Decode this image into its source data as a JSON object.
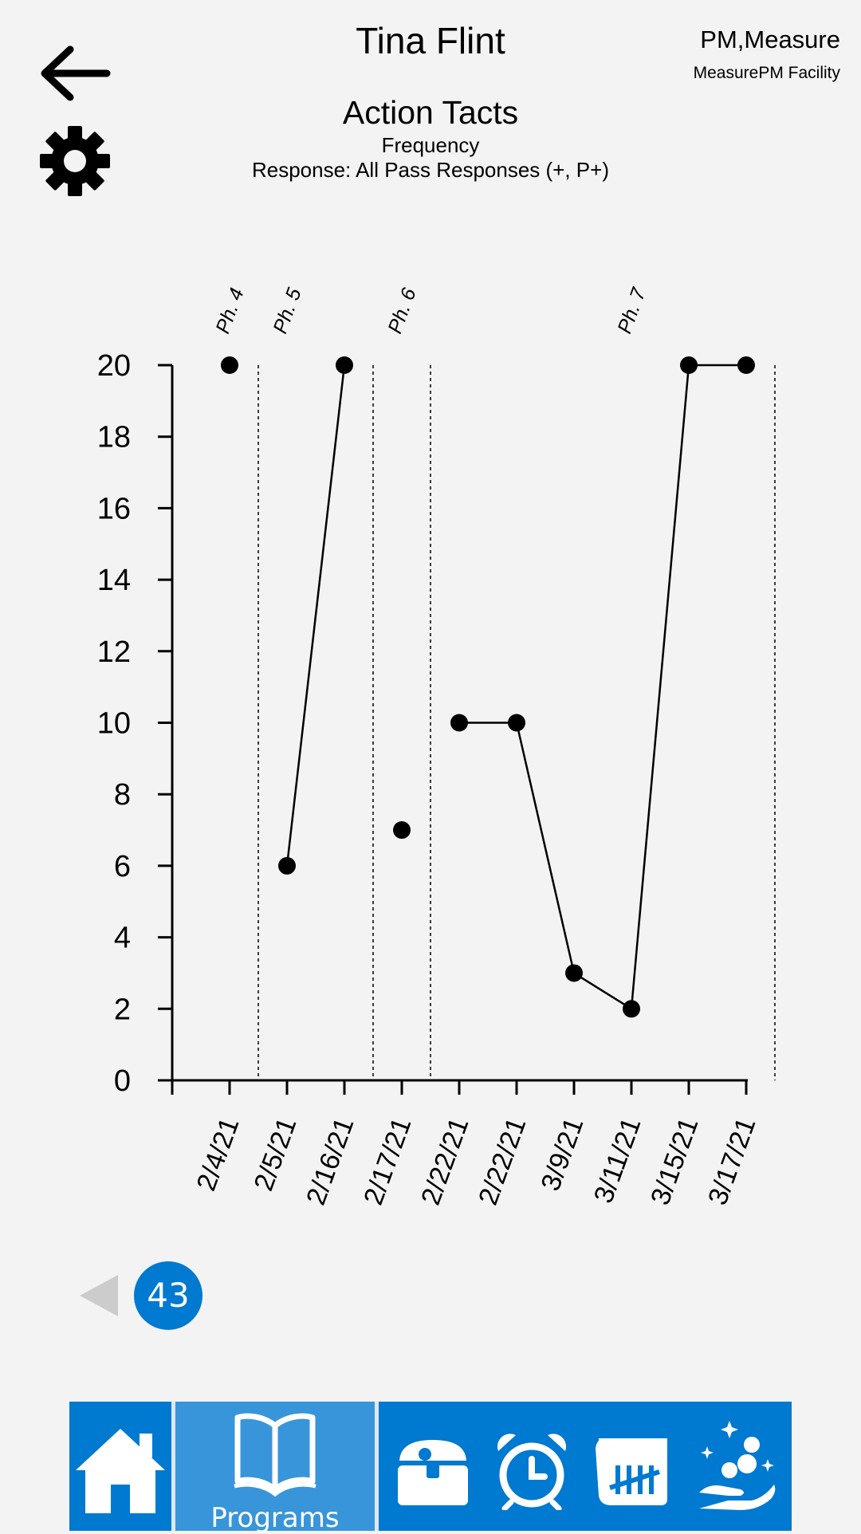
{
  "header": {
    "student_name": "Tina Flint",
    "org_name": "PM,Measure",
    "facility": "MeasurePM Facility",
    "program_title": "Action Tacts",
    "measure": "Frequency",
    "response": "Response: All Pass Responses (+, P+)"
  },
  "icons": {
    "back": "back-arrow-icon",
    "settings": "gear-icon",
    "previous": "triangle-left-icon"
  },
  "pagination": {
    "page": "43"
  },
  "nav": {
    "items": [
      {
        "name": "home",
        "icon": "home-icon"
      },
      {
        "name": "programs",
        "icon": "open-book-icon",
        "label": "Programs"
      },
      {
        "name": "treasure",
        "icon": "treasure-chest-icon"
      },
      {
        "name": "timer",
        "icon": "alarm-clock-icon"
      },
      {
        "name": "tally",
        "icon": "tally-calendar-icon"
      },
      {
        "name": "rewards",
        "icon": "hand-coins-icon"
      }
    ]
  },
  "colors": {
    "accent": "#0079d0",
    "accent_active": "#3895da",
    "background": "#f3f3f3"
  },
  "chart_data": {
    "type": "line",
    "title": "",
    "xlabel": "",
    "ylabel": "",
    "ylim": [
      0,
      20
    ],
    "yticks": [
      "0",
      "2",
      "4",
      "6",
      "8",
      "10",
      "12",
      "14",
      "16",
      "18",
      "20"
    ],
    "categories": [
      "2/4/21",
      "2/5/21",
      "2/16/21",
      "2/17/21",
      "2/22/21",
      "2/22/21",
      "3/9/21",
      "3/11/21",
      "3/15/21",
      "3/17/21"
    ],
    "values": [
      20,
      6,
      20,
      7,
      10,
      10,
      3,
      2,
      20,
      20
    ],
    "phases": [
      {
        "label": "Ph. 4",
        "points": [
          0
        ]
      },
      {
        "label": "Ph. 5",
        "points": [
          1,
          2
        ]
      },
      {
        "label": "Ph. 6",
        "points": [
          3
        ]
      },
      {
        "label": "Ph. 7",
        "points": [
          4,
          5,
          6,
          7,
          8,
          9
        ]
      }
    ],
    "grid": false,
    "legend": "none"
  }
}
